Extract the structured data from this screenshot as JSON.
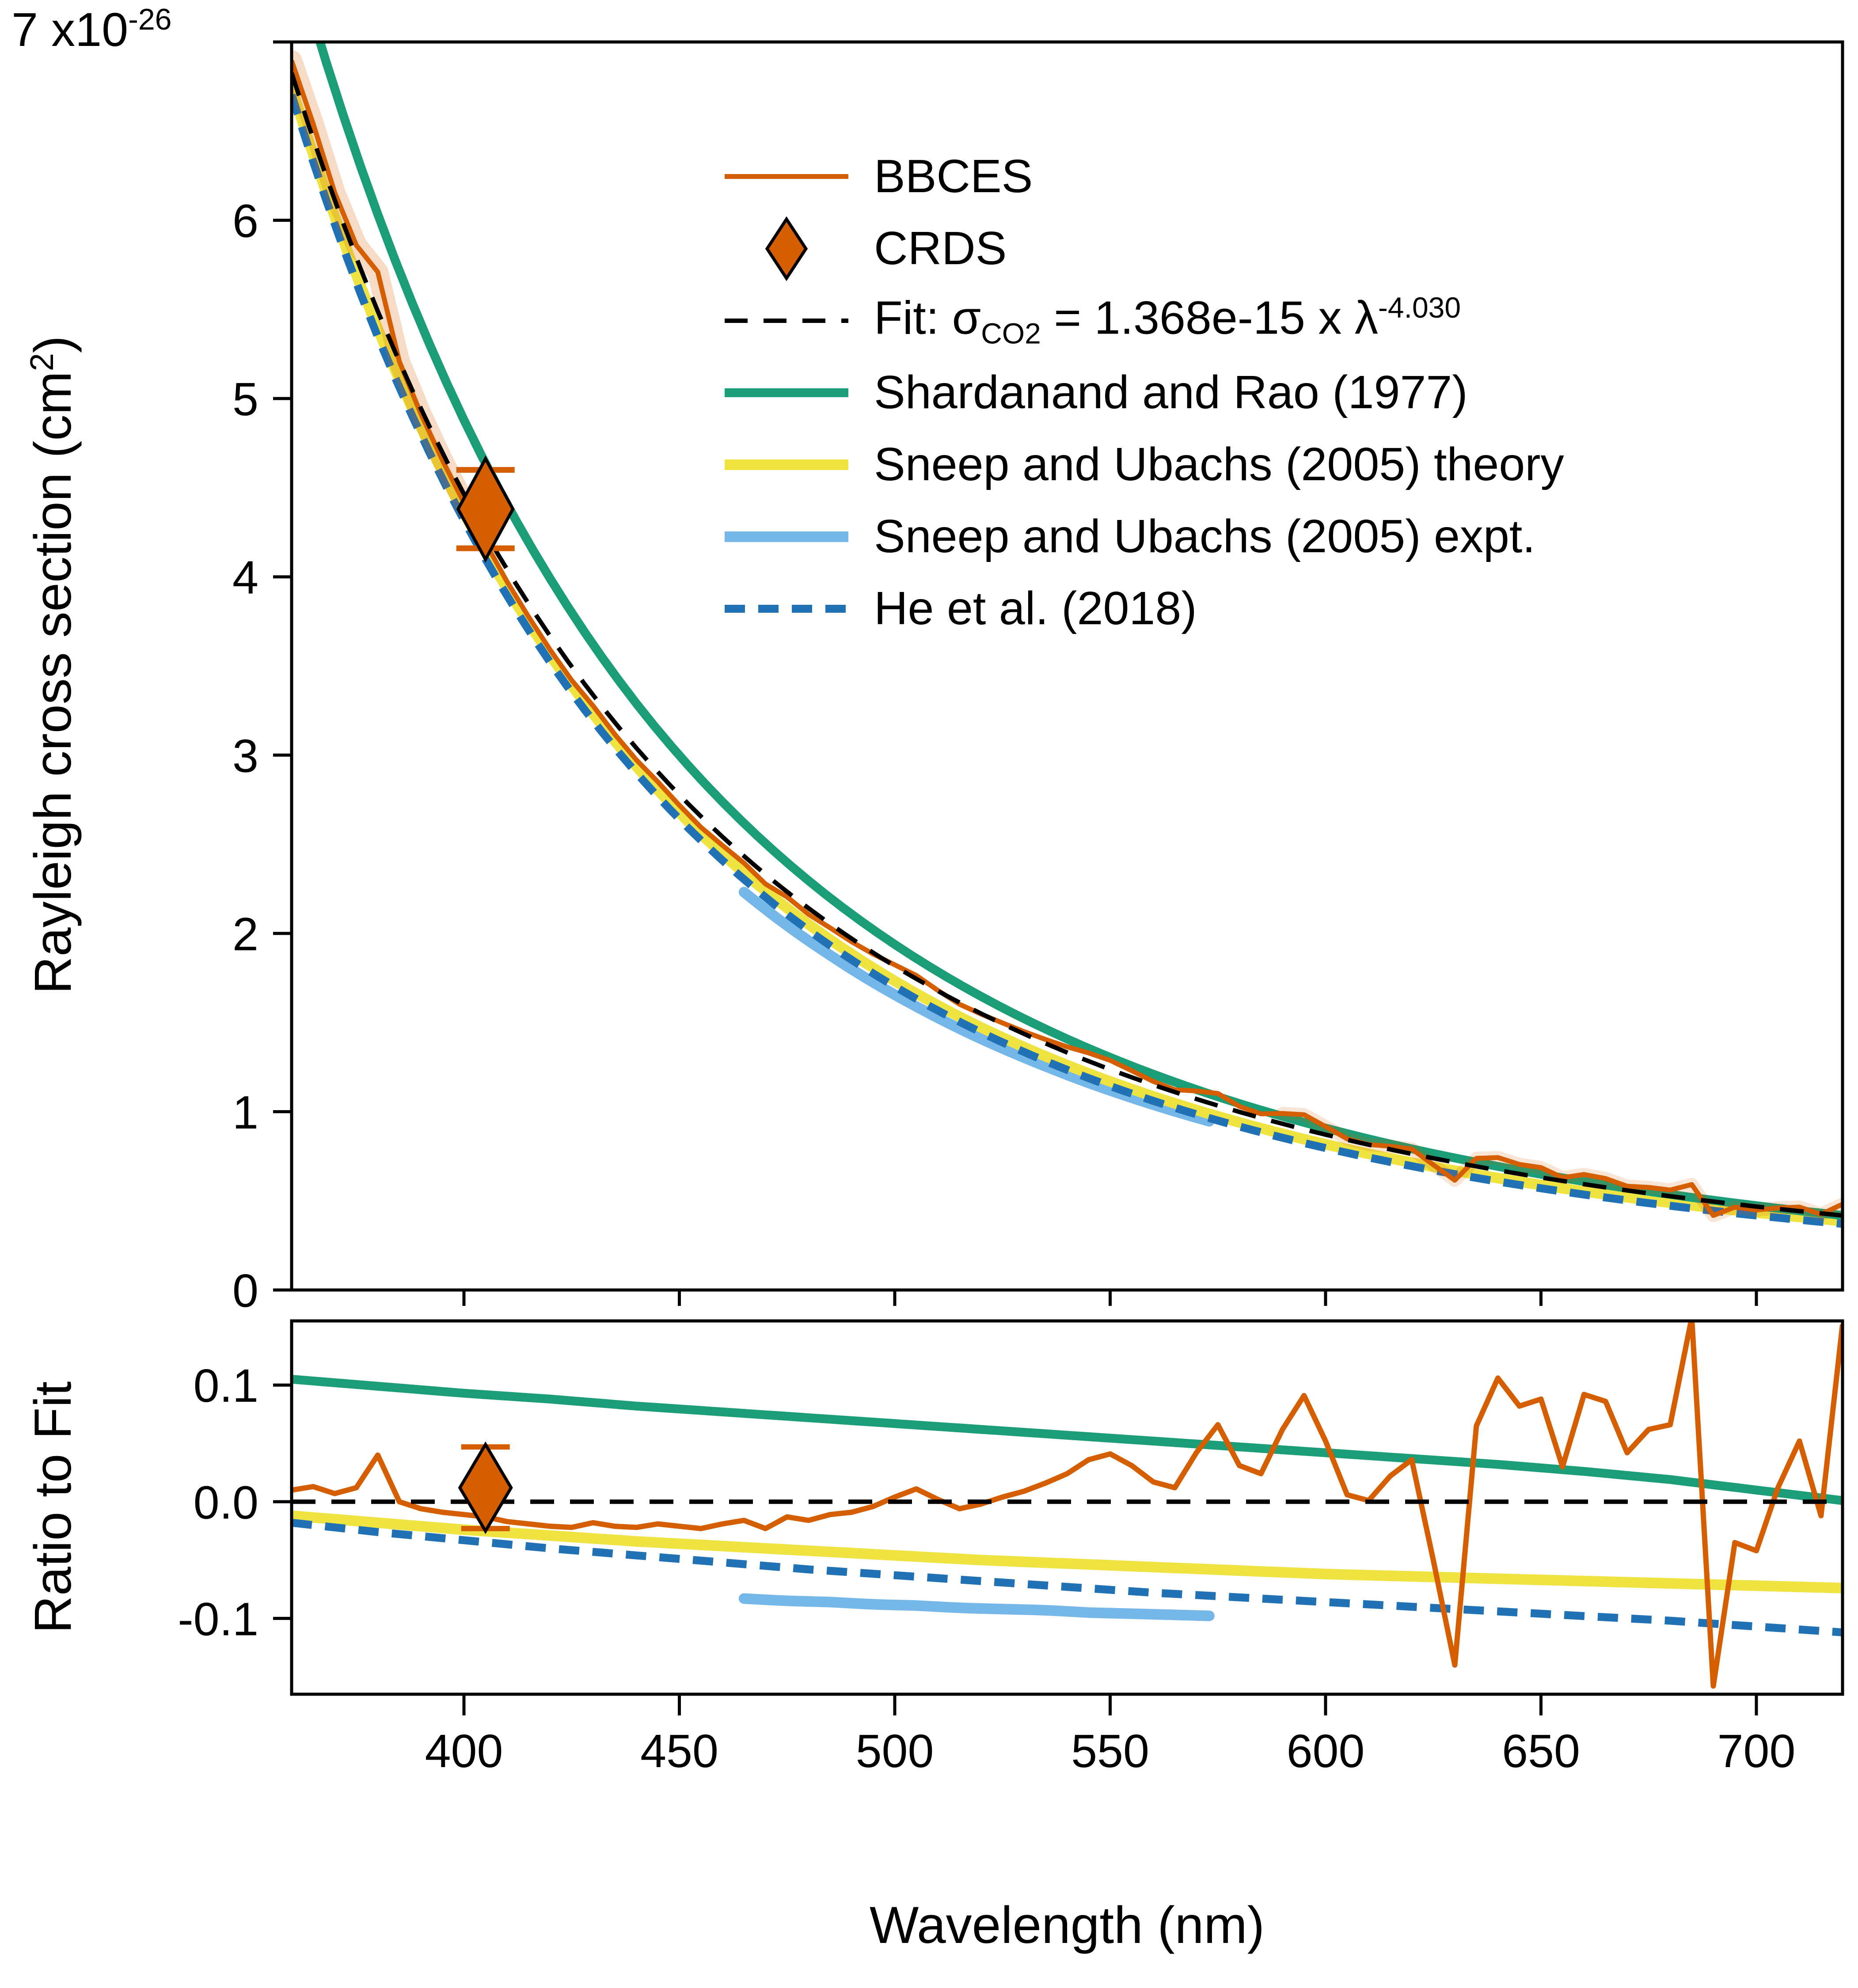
{
  "palette": {
    "bbces": "#D55E00",
    "bbces_band": "rgba(213,94,0,0.22)",
    "bbces_band_light": "rgba(213,94,0,0.16)",
    "fit": "#000000",
    "shardanand": "#1B9E77",
    "sneep_theory": "#EFE342",
    "sneep_expt": "#74B7E8",
    "he2018": "#2171B5"
  },
  "axes": {
    "x": {
      "label": "Wavelength (nm)",
      "tick_labels": [
        "400",
        "450",
        "500",
        "550",
        "600",
        "650",
        "700"
      ]
    },
    "top": {
      "ylabel_pre": "Rayleigh cross section (cm",
      "ylabel_sup": "2",
      "ylabel_post": ")",
      "tick_labels": [
        "0",
        "1",
        "2",
        "3",
        "4",
        "5",
        "6"
      ],
      "top_tick_mantissa": "7 x10",
      "top_tick_exp": "-26"
    },
    "bottom": {
      "ylabel": "Ratio to Fit",
      "tick_labels": [
        "-0.1",
        "0.0",
        "0.1"
      ]
    }
  },
  "legend": {
    "entries": [
      {
        "name": "bbces",
        "label": "BBCES",
        "swatch": {
          "kind": "line",
          "color": "#D55E00",
          "thickness": 11
        }
      },
      {
        "name": "crds",
        "label": "CRDS",
        "swatch": {
          "kind": "diamond",
          "color": "#D55E00"
        }
      },
      {
        "name": "fit",
        "parts": [
          {
            "t": "Fit: σ"
          },
          {
            "t": "CO2",
            "sub": true
          },
          {
            "t": " = 1.368e-15 x λ"
          },
          {
            "t": "-4.030",
            "sup": true
          }
        ],
        "swatch": {
          "kind": "line",
          "color": "#000000",
          "thickness": 10,
          "dash": [
            52,
            36
          ]
        }
      },
      {
        "name": "shardanand",
        "label": "Shardanand and Rao (1977)",
        "swatch": {
          "kind": "line",
          "color": "#1B9E77",
          "thickness": 20
        }
      },
      {
        "name": "sneep-theory",
        "label": "Sneep and Ubachs (2005) theory",
        "swatch": {
          "kind": "line",
          "color": "#EFE342",
          "thickness": 24
        }
      },
      {
        "name": "sneep-expt",
        "label": "Sneep and Ubachs (2005) expt.",
        "swatch": {
          "kind": "line",
          "color": "#74B7E8",
          "thickness": 24
        }
      },
      {
        "name": "he2018",
        "label": "He et al. (2018)",
        "swatch": {
          "kind": "line",
          "color": "#2171B5",
          "thickness": 18,
          "dash": [
            46,
            30
          ]
        }
      }
    ]
  },
  "chart_data": {
    "type": "line",
    "xlabel": "Wavelength (nm)",
    "xlim": [
      360,
      720
    ],
    "xticks": [
      400,
      450,
      500,
      550,
      600,
      650,
      700
    ],
    "panels": [
      {
        "name": "cross-section",
        "ylabel": "Rayleigh cross section (cm^2)",
        "units": "1e-26 cm^2",
        "ylim": [
          0,
          7
        ],
        "yticks": [
          0,
          1,
          2,
          3,
          4,
          5,
          6,
          7
        ]
      },
      {
        "name": "ratio-to-fit",
        "ylabel": "Ratio to Fit",
        "ylim": [
          -0.165,
          0.155
        ],
        "yticks": [
          -0.1,
          0.0,
          0.1
        ]
      }
    ],
    "fit": {
      "label": "Fit: sigma_CO2 = 1.368e-15 x lambda^-4.030",
      "A": 1.368e-15,
      "n": 4.03
    },
    "crds_point": {
      "x": 405,
      "y_1e26": 4.38,
      "yerr_1e26": 0.22,
      "ratio": 0.012,
      "ratio_err": 0.035
    },
    "series": [
      {
        "key": "shardanand",
        "name": "Shardanand and Rao (1977)",
        "x_start": 360,
        "x_step": 20,
        "ratio_to_fit": [
          0.105,
          0.099,
          0.093,
          0.088,
          0.082,
          0.077,
          0.072,
          0.067,
          0.062,
          0.057,
          0.052,
          0.047,
          0.042,
          0.037,
          0.032,
          0.026,
          0.019,
          0.01,
          0.001
        ]
      },
      {
        "key": "sneep_theory",
        "name": "Sneep and Ubachs (2005) theory",
        "x_start": 360,
        "x_step": 20,
        "ratio_to_fit": [
          -0.012,
          -0.018,
          -0.024,
          -0.029,
          -0.034,
          -0.038,
          -0.042,
          -0.046,
          -0.05,
          -0.053,
          -0.056,
          -0.059,
          -0.062,
          -0.064,
          -0.066,
          -0.068,
          -0.07,
          -0.072,
          -0.074
        ]
      },
      {
        "key": "he2018",
        "name": "He et al. (2018)",
        "x_start": 360,
        "x_step": 20,
        "ratio_to_fit": [
          -0.018,
          -0.026,
          -0.033,
          -0.04,
          -0.046,
          -0.052,
          -0.058,
          -0.063,
          -0.068,
          -0.073,
          -0.078,
          -0.082,
          -0.086,
          -0.09,
          -0.094,
          -0.098,
          -0.102,
          -0.107,
          -0.112
        ]
      },
      {
        "key": "sneep_expt",
        "name": "Sneep and Ubachs (2005) expt.",
        "x": [
          465,
          475,
          485,
          495,
          505,
          515,
          525,
          535,
          545,
          555,
          565,
          575
        ],
        "ratio_to_fit": [
          -0.083,
          -0.085,
          -0.086,
          -0.088,
          -0.089,
          -0.091,
          -0.092,
          -0.093,
          -0.095,
          -0.096,
          -0.097,
          -0.098
        ]
      },
      {
        "key": "bbces",
        "name": "BBCES",
        "x_start": 360,
        "x_step": 5,
        "ratio_to_fit": [
          0.01,
          0.013,
          0.007,
          0.012,
          0.04,
          0.0,
          -0.006,
          -0.009,
          -0.011,
          -0.013,
          -0.017,
          -0.019,
          -0.021,
          -0.022,
          -0.018,
          -0.021,
          -0.022,
          -0.019,
          -0.021,
          -0.023,
          -0.019,
          -0.016,
          -0.023,
          -0.013,
          -0.016,
          -0.011,
          -0.009,
          -0.004,
          0.004,
          0.011,
          0.002,
          -0.006,
          -0.002,
          0.004,
          0.009,
          0.016,
          0.024,
          0.036,
          0.041,
          0.031,
          0.017,
          0.012,
          0.042,
          0.066,
          0.031,
          0.024,
          0.062,
          0.091,
          0.052,
          0.006,
          0.001,
          0.022,
          0.036,
          -0.05,
          -0.14,
          0.065,
          0.106,
          0.082,
          0.088,
          0.03,
          0.092,
          0.086,
          0.042,
          0.062,
          0.066,
          0.158,
          -0.158,
          -0.035,
          -0.042,
          0.012,
          0.052,
          -0.012,
          0.152
        ]
      }
    ]
  }
}
